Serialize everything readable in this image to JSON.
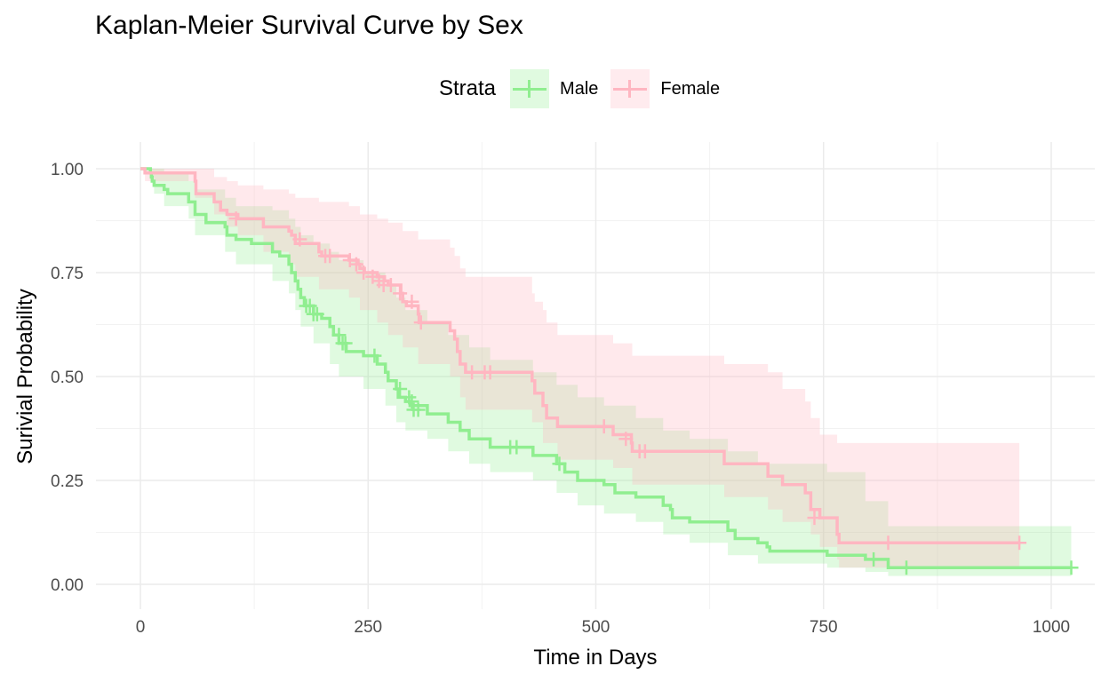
{
  "chart_data": {
    "type": "line",
    "title": "Kaplan-Meier Survival Curve by Sex",
    "xlabel": "Time in Days",
    "ylabel": "Surivial Probability",
    "xlim": [
      0,
      1022
    ],
    "ylim": [
      0,
      1
    ],
    "x_ticks": [
      "0",
      "250",
      "500",
      "750",
      "1000"
    ],
    "y_ticks": [
      "0.00",
      "0.25",
      "0.50",
      "0.75",
      "1.00"
    ],
    "grid": true,
    "legend": {
      "title": "Strata",
      "placement": "top"
    },
    "series": [
      {
        "name": "Male",
        "color": "#90EE90",
        "steps": [
          [
            0,
            1.0
          ],
          [
            11,
            0.99
          ],
          [
            12,
            0.98
          ],
          [
            13,
            0.97
          ],
          [
            15,
            0.96
          ],
          [
            26,
            0.95
          ],
          [
            30,
            0.94
          ],
          [
            53,
            0.92
          ],
          [
            60,
            0.89
          ],
          [
            72,
            0.87
          ],
          [
            93,
            0.86
          ],
          [
            95,
            0.84
          ],
          [
            105,
            0.83
          ],
          [
            122,
            0.82
          ],
          [
            145,
            0.8
          ],
          [
            153,
            0.79
          ],
          [
            163,
            0.77
          ],
          [
            166,
            0.75
          ],
          [
            170,
            0.73
          ],
          [
            173,
            0.71
          ],
          [
            176,
            0.69
          ],
          [
            180,
            0.67
          ],
          [
            190,
            0.65
          ],
          [
            199,
            0.64
          ],
          [
            208,
            0.62
          ],
          [
            212,
            0.6
          ],
          [
            218,
            0.58
          ],
          [
            226,
            0.56
          ],
          [
            245,
            0.55
          ],
          [
            260,
            0.53
          ],
          [
            269,
            0.51
          ],
          [
            272,
            0.49
          ],
          [
            281,
            0.47
          ],
          [
            283,
            0.45
          ],
          [
            291,
            0.44
          ],
          [
            296,
            0.43
          ],
          [
            315,
            0.41
          ],
          [
            338,
            0.39
          ],
          [
            351,
            0.37
          ],
          [
            361,
            0.35
          ],
          [
            384,
            0.33
          ],
          [
            431,
            0.31
          ],
          [
            457,
            0.29
          ],
          [
            466,
            0.27
          ],
          [
            480,
            0.25
          ],
          [
            509,
            0.24
          ],
          [
            521,
            0.22
          ],
          [
            544,
            0.21
          ],
          [
            574,
            0.19
          ],
          [
            582,
            0.18
          ],
          [
            584,
            0.16
          ],
          [
            603,
            0.15
          ],
          [
            645,
            0.13
          ],
          [
            653,
            0.11
          ],
          [
            678,
            0.1
          ],
          [
            688,
            0.09
          ],
          [
            691,
            0.08
          ],
          [
            754,
            0.07
          ],
          [
            796,
            0.06
          ],
          [
            821,
            0.04
          ],
          [
            1022,
            0.04
          ]
        ],
        "lower": [
          [
            0,
            1.0
          ],
          [
            11,
            0.98
          ],
          [
            15,
            0.94
          ],
          [
            26,
            0.91
          ],
          [
            53,
            0.88
          ],
          [
            60,
            0.84
          ],
          [
            93,
            0.8
          ],
          [
            105,
            0.77
          ],
          [
            145,
            0.73
          ],
          [
            163,
            0.7
          ],
          [
            170,
            0.66
          ],
          [
            176,
            0.62
          ],
          [
            190,
            0.58
          ],
          [
            208,
            0.53
          ],
          [
            218,
            0.5
          ],
          [
            245,
            0.47
          ],
          [
            269,
            0.43
          ],
          [
            281,
            0.39
          ],
          [
            291,
            0.37
          ],
          [
            315,
            0.35
          ],
          [
            338,
            0.32
          ],
          [
            361,
            0.29
          ],
          [
            384,
            0.27
          ],
          [
            431,
            0.25
          ],
          [
            457,
            0.22
          ],
          [
            480,
            0.19
          ],
          [
            509,
            0.17
          ],
          [
            544,
            0.15
          ],
          [
            574,
            0.12
          ],
          [
            603,
            0.1
          ],
          [
            645,
            0.07
          ],
          [
            678,
            0.05
          ],
          [
            754,
            0.04
          ],
          [
            796,
            0.03
          ],
          [
            821,
            0.02
          ],
          [
            1022,
            0.02
          ]
        ],
        "upper": [
          [
            0,
            1.0
          ],
          [
            11,
            1.0
          ],
          [
            26,
            0.99
          ],
          [
            53,
            0.97
          ],
          [
            60,
            0.95
          ],
          [
            93,
            0.93
          ],
          [
            105,
            0.91
          ],
          [
            145,
            0.9
          ],
          [
            163,
            0.88
          ],
          [
            170,
            0.86
          ],
          [
            176,
            0.84
          ],
          [
            190,
            0.82
          ],
          [
            208,
            0.8
          ],
          [
            218,
            0.78
          ],
          [
            245,
            0.75
          ],
          [
            269,
            0.72
          ],
          [
            281,
            0.69
          ],
          [
            291,
            0.66
          ],
          [
            315,
            0.63
          ],
          [
            338,
            0.6
          ],
          [
            361,
            0.57
          ],
          [
            384,
            0.54
          ],
          [
            431,
            0.51
          ],
          [
            457,
            0.48
          ],
          [
            480,
            0.45
          ],
          [
            509,
            0.43
          ],
          [
            544,
            0.4
          ],
          [
            574,
            0.37
          ],
          [
            603,
            0.35
          ],
          [
            645,
            0.32
          ],
          [
            678,
            0.29
          ],
          [
            754,
            0.27
          ],
          [
            796,
            0.2
          ],
          [
            821,
            0.14
          ],
          [
            1022,
            0.14
          ]
        ],
        "censored": [
          [
            182,
            0.67
          ],
          [
            186,
            0.67
          ],
          [
            190,
            0.65
          ],
          [
            194,
            0.65
          ],
          [
            218,
            0.6
          ],
          [
            222,
            0.58
          ],
          [
            225,
            0.58
          ],
          [
            257,
            0.55
          ],
          [
            285,
            0.47
          ],
          [
            295,
            0.45
          ],
          [
            298,
            0.44
          ],
          [
            300,
            0.42
          ],
          [
            305,
            0.42
          ],
          [
            406,
            0.33
          ],
          [
            413,
            0.33
          ],
          [
            460,
            0.29
          ],
          [
            805,
            0.06
          ],
          [
            841,
            0.04
          ],
          [
            1022,
            0.04
          ]
        ]
      },
      {
        "name": "Female",
        "color": "#FFB6C1",
        "steps": [
          [
            0,
            1.0
          ],
          [
            5,
            0.99
          ],
          [
            60,
            0.97
          ],
          [
            61,
            0.94
          ],
          [
            81,
            0.92
          ],
          [
            88,
            0.9
          ],
          [
            95,
            0.89
          ],
          [
            107,
            0.88
          ],
          [
            135,
            0.86
          ],
          [
            163,
            0.85
          ],
          [
            166,
            0.84
          ],
          [
            170,
            0.82
          ],
          [
            196,
            0.8
          ],
          [
            199,
            0.79
          ],
          [
            229,
            0.78
          ],
          [
            239,
            0.77
          ],
          [
            241,
            0.76
          ],
          [
            246,
            0.75
          ],
          [
            260,
            0.74
          ],
          [
            268,
            0.73
          ],
          [
            272,
            0.72
          ],
          [
            286,
            0.7
          ],
          [
            288,
            0.68
          ],
          [
            292,
            0.67
          ],
          [
            305,
            0.65
          ],
          [
            306,
            0.63
          ],
          [
            340,
            0.61
          ],
          [
            345,
            0.59
          ],
          [
            348,
            0.56
          ],
          [
            351,
            0.53
          ],
          [
            357,
            0.51
          ],
          [
            430,
            0.49
          ],
          [
            433,
            0.46
          ],
          [
            442,
            0.43
          ],
          [
            446,
            0.4
          ],
          [
            458,
            0.38
          ],
          [
            519,
            0.36
          ],
          [
            539,
            0.34
          ],
          [
            540,
            0.32
          ],
          [
            641,
            0.29
          ],
          [
            689,
            0.26
          ],
          [
            705,
            0.24
          ],
          [
            730,
            0.22
          ],
          [
            736,
            0.18
          ],
          [
            746,
            0.16
          ],
          [
            765,
            0.12
          ],
          [
            767,
            0.1
          ],
          [
            965,
            0.1
          ]
        ],
        "lower": [
          [
            0,
            1.0
          ],
          [
            5,
            0.97
          ],
          [
            60,
            0.93
          ],
          [
            81,
            0.89
          ],
          [
            95,
            0.86
          ],
          [
            107,
            0.84
          ],
          [
            135,
            0.8
          ],
          [
            163,
            0.77
          ],
          [
            170,
            0.74
          ],
          [
            196,
            0.71
          ],
          [
            229,
            0.69
          ],
          [
            241,
            0.66
          ],
          [
            260,
            0.63
          ],
          [
            272,
            0.6
          ],
          [
            288,
            0.57
          ],
          [
            305,
            0.53
          ],
          [
            340,
            0.5
          ],
          [
            351,
            0.45
          ],
          [
            357,
            0.42
          ],
          [
            430,
            0.39
          ],
          [
            442,
            0.34
          ],
          [
            458,
            0.3
          ],
          [
            519,
            0.28
          ],
          [
            540,
            0.24
          ],
          [
            641,
            0.21
          ],
          [
            689,
            0.18
          ],
          [
            705,
            0.15
          ],
          [
            736,
            0.12
          ],
          [
            746,
            0.09
          ],
          [
            765,
            0.06
          ],
          [
            767,
            0.04
          ],
          [
            965,
            0.04
          ]
        ],
        "upper": [
          [
            0,
            1.0
          ],
          [
            5,
            1.0
          ],
          [
            60,
            1.0
          ],
          [
            81,
            0.98
          ],
          [
            95,
            0.97
          ],
          [
            107,
            0.96
          ],
          [
            135,
            0.95
          ],
          [
            163,
            0.94
          ],
          [
            170,
            0.93
          ],
          [
            196,
            0.92
          ],
          [
            229,
            0.91
          ],
          [
            241,
            0.89
          ],
          [
            260,
            0.88
          ],
          [
            272,
            0.87
          ],
          [
            288,
            0.85
          ],
          [
            305,
            0.83
          ],
          [
            340,
            0.81
          ],
          [
            345,
            0.79
          ],
          [
            351,
            0.76
          ],
          [
            357,
            0.74
          ],
          [
            430,
            0.7
          ],
          [
            433,
            0.68
          ],
          [
            442,
            0.66
          ],
          [
            446,
            0.63
          ],
          [
            458,
            0.6
          ],
          [
            519,
            0.58
          ],
          [
            540,
            0.55
          ],
          [
            641,
            0.53
          ],
          [
            689,
            0.51
          ],
          [
            705,
            0.47
          ],
          [
            730,
            0.44
          ],
          [
            736,
            0.4
          ],
          [
            746,
            0.36
          ],
          [
            765,
            0.34
          ],
          [
            767,
            0.34
          ],
          [
            965,
            0.34
          ]
        ],
        "censored": [
          [
            105,
            0.88
          ],
          [
            175,
            0.83
          ],
          [
            203,
            0.79
          ],
          [
            208,
            0.79
          ],
          [
            230,
            0.78
          ],
          [
            237,
            0.77
          ],
          [
            245,
            0.75
          ],
          [
            255,
            0.74
          ],
          [
            262,
            0.73
          ],
          [
            267,
            0.72
          ],
          [
            275,
            0.72
          ],
          [
            285,
            0.7
          ],
          [
            298,
            0.68
          ],
          [
            308,
            0.63
          ],
          [
            364,
            0.51
          ],
          [
            378,
            0.51
          ],
          [
            384,
            0.51
          ],
          [
            509,
            0.38
          ],
          [
            533,
            0.35
          ],
          [
            548,
            0.32
          ],
          [
            554,
            0.32
          ],
          [
            740,
            0.16
          ],
          [
            821,
            0.1
          ],
          [
            965,
            0.1
          ]
        ]
      }
    ]
  }
}
